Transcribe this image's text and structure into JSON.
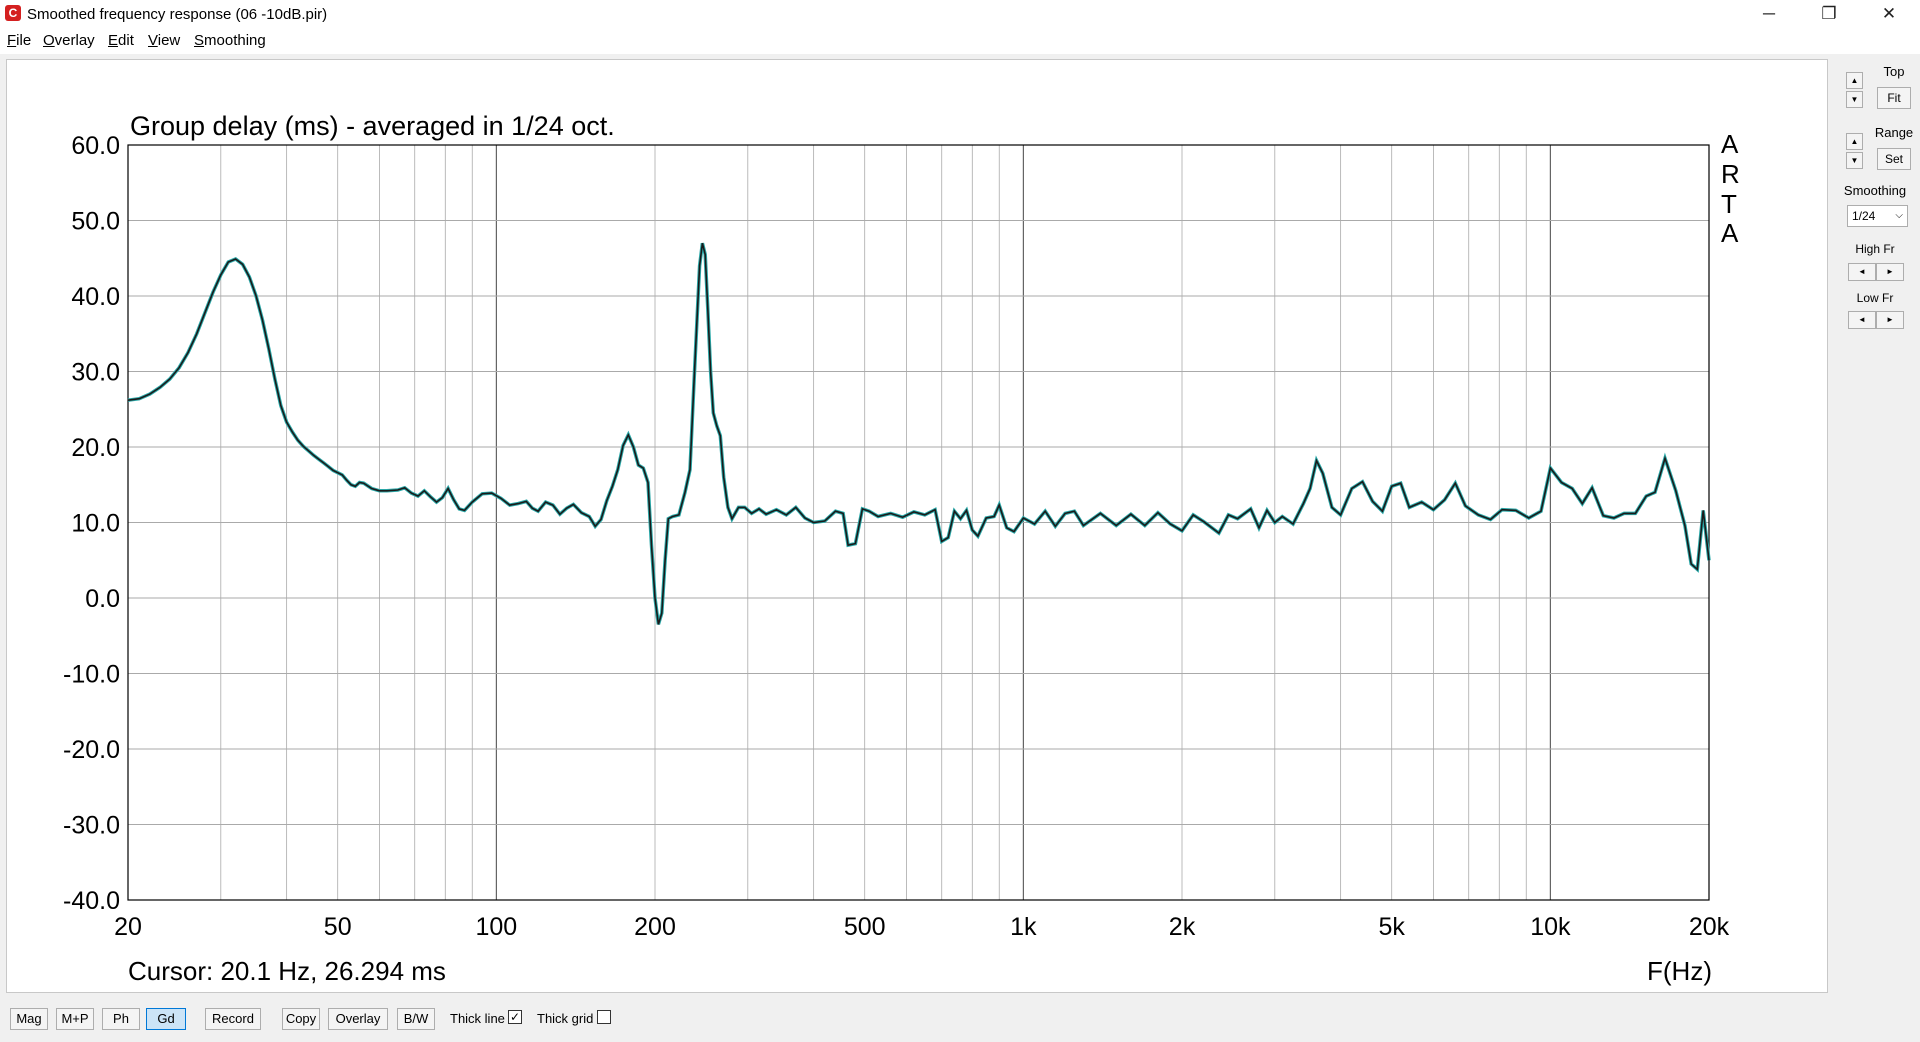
{
  "window": {
    "title": "Smoothed frequency response (06 -10dB.pir)",
    "icon": "arta-app-icon"
  },
  "controls": {
    "minimize": "─",
    "maximize": "❐",
    "close": "✕"
  },
  "menu": [
    {
      "label": "File",
      "u": "F",
      "rest": "ile"
    },
    {
      "label": "Overlay",
      "u": "O",
      "rest": "verlay"
    },
    {
      "label": "Edit",
      "u": "E",
      "rest": "dit"
    },
    {
      "label": "View",
      "u": "V",
      "rest": "iew"
    },
    {
      "label": "Smoothing",
      "u": "S",
      "rest": "moothing"
    }
  ],
  "plot": {
    "brand": [
      "A",
      "R",
      "T",
      "A"
    ],
    "cursor": "Cursor: 20.1 Hz, 26.294 ms",
    "x_unit": "F(Hz)"
  },
  "side": {
    "top_label": "Top",
    "fit": "Fit",
    "range_label": "Range",
    "set": "Set",
    "smoothing_label": "Smoothing",
    "smoothing_value": "1/24",
    "high_label": "High Fr",
    "low_label": "Low Fr",
    "up": "▲",
    "down": "▼",
    "left": "◄",
    "right": "►"
  },
  "bottom": {
    "mag": "Mag",
    "mp": "M+P",
    "ph": "Ph",
    "gd": "Gd",
    "record": "Record",
    "copy": "Copy",
    "overlay": "Overlay",
    "bw": "B/W",
    "thick_line": "Thick line",
    "thick_line_checked": "✓",
    "thick_grid": "Thick grid",
    "thick_grid_checked": ""
  },
  "chart_data": {
    "type": "line",
    "title": "Group delay (ms) - averaged in 1/24 oct.",
    "xlabel": "F(Hz)",
    "ylabel": "",
    "xscale": "log",
    "xlim": [
      20,
      20000
    ],
    "ylim": [
      -40,
      60
    ],
    "xticks": [
      {
        "v": 20,
        "label": "20"
      },
      {
        "v": 50,
        "label": "50"
      },
      {
        "v": 100,
        "label": "100"
      },
      {
        "v": 200,
        "label": "200"
      },
      {
        "v": 500,
        "label": "500"
      },
      {
        "v": 1000,
        "label": "1k"
      },
      {
        "v": 2000,
        "label": "2k"
      },
      {
        "v": 5000,
        "label": "5k"
      },
      {
        "v": 10000,
        "label": "10k"
      },
      {
        "v": 20000,
        "label": "20k"
      }
    ],
    "yticks": [
      {
        "v": 60,
        "label": "60.0"
      },
      {
        "v": 50,
        "label": "50.0"
      },
      {
        "v": 40,
        "label": "40.0"
      },
      {
        "v": 30,
        "label": "30.0"
      },
      {
        "v": 20,
        "label": "20.0"
      },
      {
        "v": 10,
        "label": "10.0"
      },
      {
        "v": 0,
        "label": "0.0"
      },
      {
        "v": -10,
        "label": "-10.0"
      },
      {
        "v": -20,
        "label": "-20.0"
      },
      {
        "v": -30,
        "label": "-30.0"
      },
      {
        "v": -40,
        "label": "-40.0"
      }
    ],
    "grid": true,
    "line_color": "#1a1a1a",
    "line_shadow_color": "#2aa8a8",
    "series": [
      {
        "points": [
          [
            20,
            26.2
          ],
          [
            21,
            26.4
          ],
          [
            22,
            27.0
          ],
          [
            23,
            27.9
          ],
          [
            24,
            29.0
          ],
          [
            25,
            30.5
          ],
          [
            26,
            32.5
          ],
          [
            27,
            35.0
          ],
          [
            28,
            37.8
          ],
          [
            29,
            40.5
          ],
          [
            30,
            42.8
          ],
          [
            31,
            44.5
          ],
          [
            32,
            44.9
          ],
          [
            33,
            44.2
          ],
          [
            34,
            42.5
          ],
          [
            35,
            40.0
          ],
          [
            36,
            36.8
          ],
          [
            37,
            33.0
          ],
          [
            38,
            29.0
          ],
          [
            39,
            25.5
          ],
          [
            40,
            23.3
          ],
          [
            41,
            22.0
          ],
          [
            42,
            20.9
          ],
          [
            43,
            20.1
          ],
          [
            44,
            19.5
          ],
          [
            45,
            18.9
          ],
          [
            46,
            18.4
          ],
          [
            47,
            17.9
          ],
          [
            48,
            17.4
          ],
          [
            49,
            16.9
          ],
          [
            50,
            16.6
          ],
          [
            51,
            16.3
          ],
          [
            52,
            15.6
          ],
          [
            53,
            15.0
          ],
          [
            54,
            14.8
          ],
          [
            55,
            15.3
          ],
          [
            56,
            15.2
          ],
          [
            58,
            14.5
          ],
          [
            60,
            14.2
          ],
          [
            62,
            14.2
          ],
          [
            65,
            14.3
          ],
          [
            67,
            14.6
          ],
          [
            69,
            13.9
          ],
          [
            71,
            13.5
          ],
          [
            73,
            14.2
          ],
          [
            75,
            13.4
          ],
          [
            77,
            12.7
          ],
          [
            79,
            13.3
          ],
          [
            81,
            14.5
          ],
          [
            83,
            13.0
          ],
          [
            85,
            11.8
          ],
          [
            87,
            11.6
          ],
          [
            90,
            12.7
          ],
          [
            94,
            13.8
          ],
          [
            98,
            13.9
          ],
          [
            102,
            13.2
          ],
          [
            106,
            12.3
          ],
          [
            110,
            12.5
          ],
          [
            114,
            12.8
          ],
          [
            117,
            11.9
          ],
          [
            120,
            11.5
          ],
          [
            124,
            12.7
          ],
          [
            128,
            12.3
          ],
          [
            132,
            11.1
          ],
          [
            136,
            11.9
          ],
          [
            140,
            12.4
          ],
          [
            145,
            11.3
          ],
          [
            150,
            10.8
          ],
          [
            154,
            9.5
          ],
          [
            158,
            10.4
          ],
          [
            162,
            12.9
          ],
          [
            166,
            14.8
          ],
          [
            170,
            17.0
          ],
          [
            174,
            20.2
          ],
          [
            178,
            21.6
          ],
          [
            182,
            20.0
          ],
          [
            186,
            17.6
          ],
          [
            190,
            17.2
          ],
          [
            194,
            15.3
          ],
          [
            197,
            7.0
          ],
          [
            200,
            0.0
          ],
          [
            203,
            -3.5
          ],
          [
            206,
            -2.0
          ],
          [
            209,
            5.0
          ],
          [
            212,
            10.5
          ],
          [
            216,
            10.8
          ],
          [
            222,
            11.0
          ],
          [
            228,
            14.0
          ],
          [
            233,
            17.0
          ],
          [
            237,
            28.0
          ],
          [
            240,
            36.0
          ],
          [
            243,
            44.0
          ],
          [
            246,
            47.0
          ],
          [
            249,
            45.5
          ],
          [
            252,
            38.0
          ],
          [
            255,
            30.0
          ],
          [
            258,
            24.5
          ],
          [
            262,
            22.8
          ],
          [
            266,
            21.5
          ],
          [
            270,
            16.0
          ],
          [
            275,
            12.0
          ],
          [
            280,
            10.5
          ],
          [
            288,
            12.0
          ],
          [
            296,
            12.0
          ],
          [
            305,
            11.2
          ],
          [
            315,
            11.8
          ],
          [
            325,
            11.1
          ],
          [
            340,
            11.7
          ],
          [
            355,
            11.0
          ],
          [
            370,
            12.0
          ],
          [
            385,
            10.6
          ],
          [
            400,
            10.0
          ],
          [
            420,
            10.2
          ],
          [
            440,
            11.5
          ],
          [
            455,
            11.2
          ],
          [
            465,
            7.0
          ],
          [
            480,
            7.2
          ],
          [
            495,
            11.8
          ],
          [
            510,
            11.5
          ],
          [
            530,
            10.8
          ],
          [
            560,
            11.2
          ],
          [
            590,
            10.7
          ],
          [
            620,
            11.4
          ],
          [
            650,
            11.0
          ],
          [
            680,
            11.7
          ],
          [
            700,
            7.5
          ],
          [
            720,
            8.0
          ],
          [
            740,
            11.5
          ],
          [
            760,
            10.5
          ],
          [
            780,
            11.6
          ],
          [
            800,
            9.0
          ],
          [
            820,
            8.2
          ],
          [
            850,
            10.6
          ],
          [
            880,
            10.8
          ],
          [
            900,
            12.3
          ],
          [
            930,
            9.3
          ],
          [
            960,
            8.8
          ],
          [
            1000,
            10.6
          ],
          [
            1050,
            9.8
          ],
          [
            1100,
            11.5
          ],
          [
            1150,
            9.5
          ],
          [
            1200,
            11.2
          ],
          [
            1250,
            11.5
          ],
          [
            1300,
            9.6
          ],
          [
            1400,
            11.2
          ],
          [
            1500,
            9.6
          ],
          [
            1600,
            11.1
          ],
          [
            1700,
            9.6
          ],
          [
            1800,
            11.3
          ],
          [
            1900,
            9.8
          ],
          [
            2000,
            8.9
          ],
          [
            2100,
            11.0
          ],
          [
            2200,
            10.1
          ],
          [
            2350,
            8.6
          ],
          [
            2450,
            11.0
          ],
          [
            2550,
            10.5
          ],
          [
            2700,
            11.8
          ],
          [
            2800,
            9.3
          ],
          [
            2900,
            11.6
          ],
          [
            3000,
            10.0
          ],
          [
            3100,
            10.8
          ],
          [
            3250,
            9.8
          ],
          [
            3400,
            12.5
          ],
          [
            3500,
            14.5
          ],
          [
            3600,
            18.2
          ],
          [
            3700,
            16.5
          ],
          [
            3850,
            12.0
          ],
          [
            4000,
            11.0
          ],
          [
            4200,
            14.5
          ],
          [
            4400,
            15.4
          ],
          [
            4600,
            12.8
          ],
          [
            4800,
            11.5
          ],
          [
            5000,
            14.8
          ],
          [
            5200,
            15.2
          ],
          [
            5400,
            12.0
          ],
          [
            5700,
            12.7
          ],
          [
            6000,
            11.7
          ],
          [
            6300,
            13.0
          ],
          [
            6600,
            15.2
          ],
          [
            6900,
            12.2
          ],
          [
            7300,
            11.0
          ],
          [
            7700,
            10.4
          ],
          [
            8100,
            11.7
          ],
          [
            8600,
            11.6
          ],
          [
            9100,
            10.6
          ],
          [
            9600,
            11.5
          ],
          [
            10000,
            17.2
          ],
          [
            10500,
            15.3
          ],
          [
            11000,
            14.5
          ],
          [
            11500,
            12.5
          ],
          [
            12000,
            14.6
          ],
          [
            12600,
            10.9
          ],
          [
            13200,
            10.6
          ],
          [
            13800,
            11.2
          ],
          [
            14500,
            11.2
          ],
          [
            15200,
            13.5
          ],
          [
            15800,
            14.0
          ],
          [
            16500,
            18.5
          ],
          [
            17300,
            14.2
          ],
          [
            18000,
            9.6
          ],
          [
            18500,
            4.5
          ],
          [
            19000,
            3.8
          ],
          [
            19500,
            11.6
          ],
          [
            20000,
            5.0
          ]
        ]
      }
    ]
  }
}
